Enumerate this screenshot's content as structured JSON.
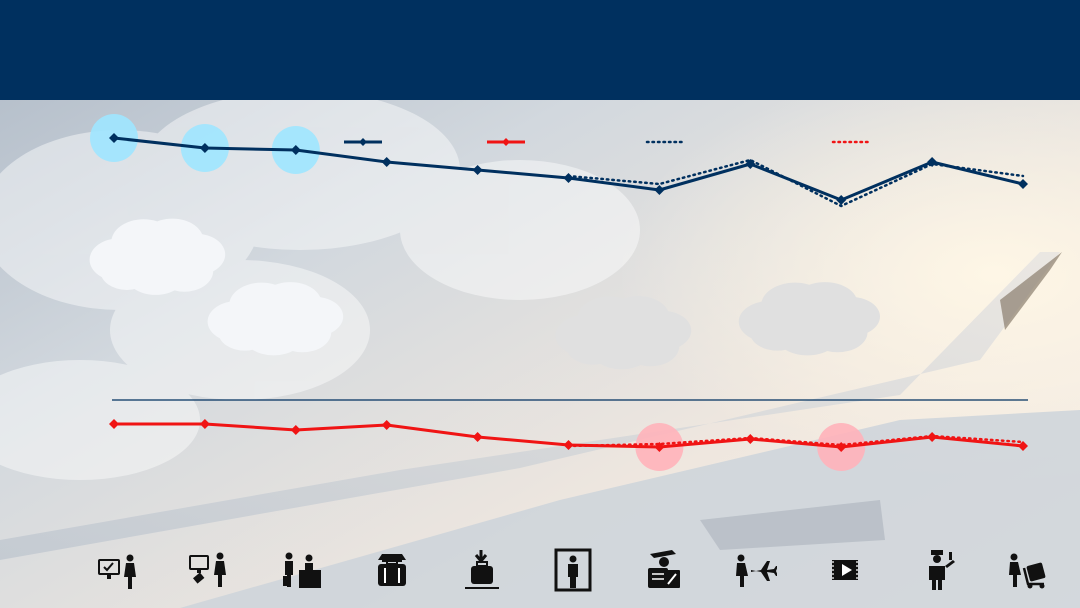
{
  "header": {
    "title": ""
  },
  "colors": {
    "header": "#00305f",
    "navy": "#00305f",
    "red": "#f01414",
    "highlight_blue": "#9fe6ff",
    "highlight_red": "#ffb3ba",
    "cloud_white": "#f4f6f9",
    "cloud_grey": "#e0e0e0"
  },
  "legend": [
    {
      "name": "",
      "style": "solid-navy"
    },
    {
      "name": "",
      "style": "solid-red"
    },
    {
      "name": "",
      "style": "dotted-navy"
    },
    {
      "name": "",
      "style": "dotted-red"
    }
  ],
  "chart_data": [
    {
      "type": "line",
      "title": "",
      "x": [
        1,
        2,
        3,
        4,
        5,
        6,
        7,
        8,
        9,
        10,
        11
      ],
      "ylim": [
        0,
        100
      ],
      "grid": false,
      "series": [
        {
          "values": [
            86,
            81,
            80,
            74,
            70,
            66,
            60,
            73,
            55,
            74,
            63
          ],
          "color": "navy",
          "style": "solid"
        },
        {
          "values": [
            null,
            null,
            null,
            null,
            null,
            67,
            63,
            75,
            52,
            73,
            67
          ],
          "color": "navy",
          "style": "dotted"
        }
      ],
      "highlighted_points": [
        1,
        2,
        3
      ]
    },
    {
      "type": "line",
      "title": "",
      "x": [
        1,
        2,
        3,
        4,
        5,
        6,
        7,
        8,
        9,
        10,
        11
      ],
      "ylim": [
        0,
        100
      ],
      "grid": false,
      "series": [
        {
          "values": [
            81,
            81,
            75,
            80,
            68,
            60,
            58,
            66,
            58,
            68,
            59
          ],
          "color": "red",
          "style": "solid"
        },
        {
          "values": [
            null,
            null,
            null,
            null,
            null,
            59,
            61,
            67,
            60,
            69,
            63
          ],
          "color": "red",
          "style": "dotted"
        }
      ],
      "highlighted_points": [
        7,
        9
      ]
    }
  ],
  "stage_icons": [
    "check-in-kiosk-icon",
    "bag-tag-kiosk-icon",
    "check-in-desk-icon",
    "bag-drop-icon",
    "baggage-claim-icon",
    "security-screening-icon",
    "passport-control-icon",
    "boarding-icon",
    "inflight-entertainment-icon",
    "cabin-crew-icon",
    "baggage-delivery-icon"
  ]
}
